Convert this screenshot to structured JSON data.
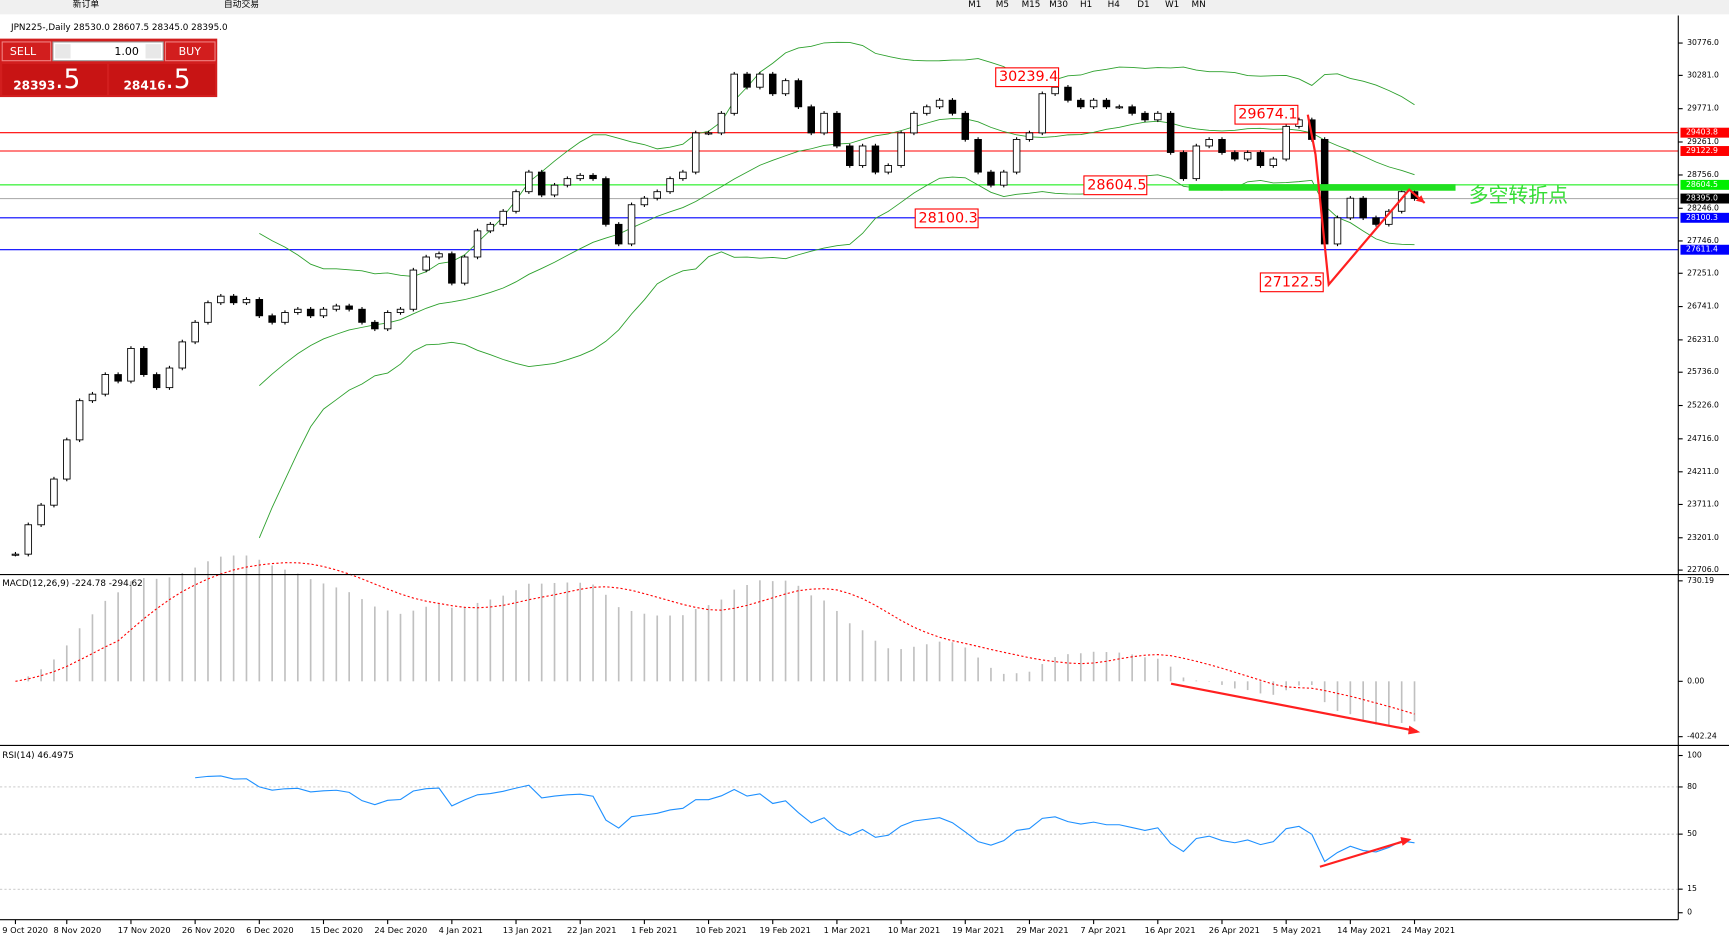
{
  "toolbar": {
    "buttons": [
      "新订单",
      "自动交易"
    ],
    "timeframes": [
      "M1",
      "M5",
      "M15",
      "M30",
      "H1",
      "H4",
      "D1",
      "W1",
      "MN"
    ]
  },
  "trade_panel": {
    "sell": "SELL",
    "lot": "1.00",
    "buy": "BUY",
    "sell_price": "28393",
    "sell_fraction": ".5",
    "buy_price": "28416",
    "buy_fraction": ".5"
  },
  "chart_data": {
    "type": "candlestick",
    "title": "JPN225-,Daily  28530.0 28607.5 28345.0 28395.0",
    "categories": [
      "9 Oct 2020",
      null,
      null,
      null,
      "8 Nov 2020",
      null,
      null,
      null,
      null,
      "17 Nov 2020",
      null,
      null,
      null,
      null,
      "26 Nov 2020",
      null,
      null,
      null,
      null,
      "6 Dec 2020",
      null,
      null,
      null,
      null,
      "15 Dec 2020",
      null,
      null,
      null,
      null,
      "24 Dec 2020",
      null,
      null,
      null,
      null,
      "4 Jan 2021",
      null,
      null,
      null,
      null,
      "13 Jan 2021",
      null,
      null,
      null,
      null,
      "22 Jan 2021",
      null,
      null,
      null,
      null,
      "1 Feb 2021",
      null,
      null,
      null,
      null,
      "10 Feb 2021",
      null,
      null,
      null,
      null,
      "19 Feb 2021",
      null,
      null,
      null,
      null,
      "1 Mar 2021",
      null,
      null,
      null,
      null,
      "10 Mar 2021",
      null,
      null,
      null,
      null,
      "19 Mar 2021",
      null,
      null,
      null,
      null,
      "29 Mar 2021",
      null,
      null,
      null,
      null,
      "7 Apr 2021",
      null,
      null,
      null,
      null,
      "16 Apr 2021",
      null,
      null,
      null,
      null,
      "26 Apr 2021",
      null,
      null,
      null,
      null,
      "5 May 2021",
      null,
      null,
      null,
      null,
      "14 May 2021",
      null,
      null,
      null,
      null,
      "24 May 2021"
    ],
    "values": [
      22950,
      23400,
      23700,
      24100,
      24700,
      25300,
      25400,
      25700,
      25600,
      26100,
      25700,
      25500,
      25800,
      26200,
      26500,
      26800,
      26900,
      26800,
      26850,
      26600,
      26500,
      26650,
      26700,
      26600,
      26700,
      26750,
      26700,
      26500,
      26400,
      26650,
      26700,
      27300,
      27500,
      27550,
      27100,
      27500,
      27900,
      28000,
      28200,
      28500,
      28800,
      28450,
      28600,
      28700,
      28750,
      28700,
      28000,
      27700,
      28300,
      28400,
      28500,
      28700,
      28800,
      29400,
      29400,
      29700,
      30300,
      30100,
      30300,
      30000,
      30200,
      29800,
      29400,
      29700,
      29200,
      28900,
      29200,
      28800,
      28900,
      29400,
      29700,
      29800,
      29900,
      29700,
      29300,
      28800,
      28600,
      28800,
      29300,
      29400,
      30000,
      30100,
      29900,
      29800,
      29900,
      29800,
      29800,
      29700,
      29600,
      29700,
      29100,
      28700,
      29200,
      29300,
      29100,
      29000,
      29100,
      28900,
      29000,
      29500,
      29600,
      29300,
      27700,
      28100,
      28400,
      28100,
      28000,
      28200,
      28500,
      28395
    ],
    "ylim": [
      22655,
      30928
    ],
    "yticks": [
      {
        "value": 30776,
        "label": "30776.0"
      },
      {
        "value": 30281,
        "label": "30281.0"
      },
      {
        "value": 29771,
        "label": "29771.0"
      },
      {
        "value": 29261,
        "label": "29261.0"
      },
      {
        "value": 28756,
        "label": "28756.0"
      },
      {
        "value": 28246,
        "label": "28246.0"
      },
      {
        "value": 27746,
        "label": "27746.0"
      },
      {
        "value": 27251,
        "label": "27251.0"
      },
      {
        "value": 26741,
        "label": "26741.0"
      },
      {
        "value": 26231,
        "label": "26231.0"
      },
      {
        "value": 25736,
        "label": "25736.0"
      },
      {
        "value": 25226,
        "label": "25226.0"
      },
      {
        "value": 24716,
        "label": "24716.0"
      },
      {
        "value": 24211,
        "label": "24211.0"
      },
      {
        "value": 23711,
        "label": "23711.0"
      },
      {
        "value": 23201,
        "label": "23201.0"
      },
      {
        "value": 22706,
        "label": "22706.0"
      }
    ],
    "levels": [
      {
        "value": 29403.8,
        "color": "#ff0000"
      },
      {
        "value": 29122.9,
        "color": "#ff0000"
      },
      {
        "value": 28604.5,
        "color": "#00ee00"
      },
      {
        "value": 28395.0,
        "label": "28395.0",
        "color": "#b0b0b0",
        "tag_color": "#000000"
      },
      {
        "value": 28100.3,
        "color": "#0000ff"
      },
      {
        "value": 27611.4,
        "color": "#0000ff"
      }
    ],
    "annotations": [
      "30239.4",
      "29674.1",
      "28604.5",
      "28100.3",
      "27122.5",
      "多空转折点"
    ],
    "colors": {
      "up": "#ffffff",
      "down": "#000000",
      "bands": "#2ca02c"
    },
    "indicators": [
      {
        "type": "macd",
        "label": "MACD(12,26,9) -224.78 -294.62",
        "ylim": [
          -450,
          760
        ],
        "yticks": [
          730.19,
          {
            "value": 0,
            "label": "0.00"
          },
          -402.24
        ],
        "color": "#c0c0c0",
        "signal_color": "#ff0000"
      },
      {
        "type": "rsi",
        "label": "RSI(14) 46.4975",
        "ylim": [
          -3,
          105
        ],
        "yticks": [
          100,
          80,
          50,
          15,
          0
        ],
        "color": "#1e90ff"
      }
    ]
  }
}
